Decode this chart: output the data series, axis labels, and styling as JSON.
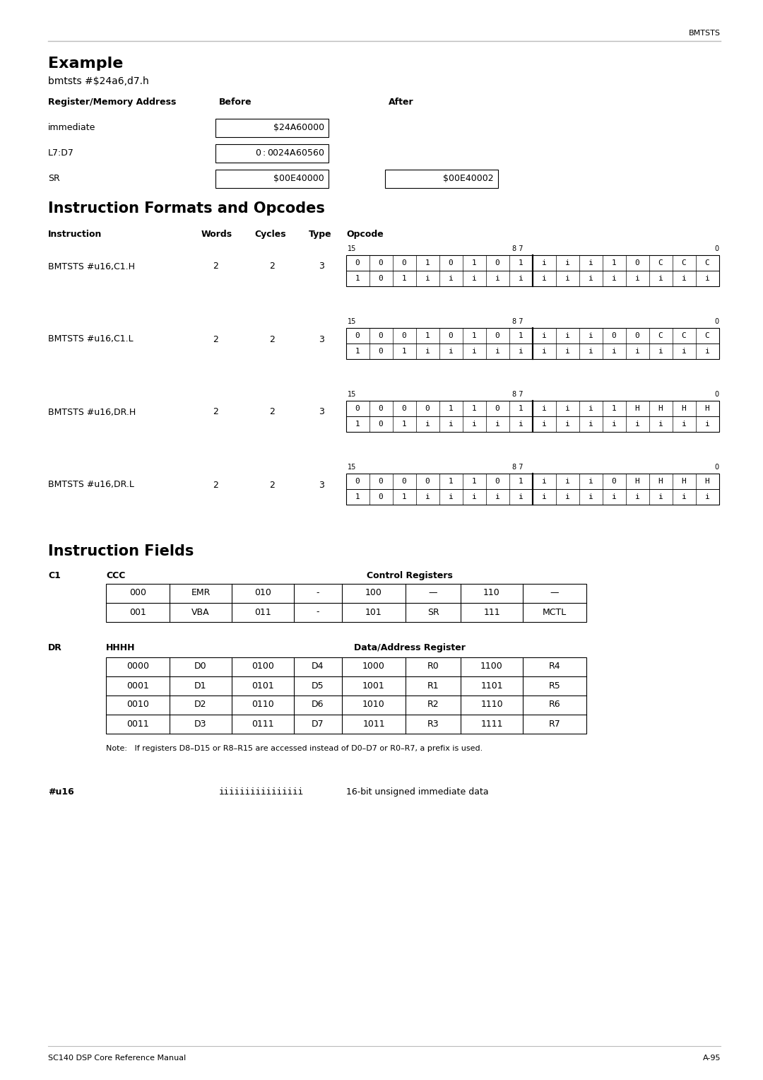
{
  "page_width": 10.8,
  "page_height": 15.28,
  "bg_color": "#ffffff",
  "header_text": "BMTSTS",
  "example_title": "Example",
  "example_subtitle": "bmtsts #$24a6,d7.h",
  "reg_table_headers": [
    "Register/Memory Address",
    "Before",
    "After"
  ],
  "reg_table_rows": [
    [
      "immediate",
      "$24A60000",
      ""
    ],
    [
      "L7:D7",
      "$0:$0024A60560",
      ""
    ],
    [
      "SR",
      "$00E40000",
      "$00E40002"
    ]
  ],
  "section2_title": "Instruction Formats and Opcodes",
  "instructions": [
    {
      "name": "BMTSTS #u16,C1.H",
      "words": "2",
      "cycles": "2",
      "type": "3",
      "row1": [
        "0",
        "0",
        "0",
        "1",
        "0",
        "1",
        "0",
        "1",
        "i",
        "i",
        "i",
        "1",
        "0",
        "C",
        "C",
        "C"
      ],
      "row2": [
        "1",
        "0",
        "1",
        "i",
        "i",
        "i",
        "i",
        "i",
        "i",
        "i",
        "i",
        "i",
        "i",
        "i",
        "i",
        "i"
      ]
    },
    {
      "name": "BMTSTS #u16,C1.L",
      "words": "2",
      "cycles": "2",
      "type": "3",
      "row1": [
        "0",
        "0",
        "0",
        "1",
        "0",
        "1",
        "0",
        "1",
        "i",
        "i",
        "i",
        "0",
        "0",
        "C",
        "C",
        "C"
      ],
      "row2": [
        "1",
        "0",
        "1",
        "i",
        "i",
        "i",
        "i",
        "i",
        "i",
        "i",
        "i",
        "i",
        "i",
        "i",
        "i",
        "i"
      ]
    },
    {
      "name": "BMTSTS #u16,DR.H",
      "words": "2",
      "cycles": "2",
      "type": "3",
      "row1": [
        "0",
        "0",
        "0",
        "0",
        "1",
        "1",
        "0",
        "1",
        "i",
        "i",
        "i",
        "1",
        "H",
        "H",
        "H",
        "H"
      ],
      "row2": [
        "1",
        "0",
        "1",
        "i",
        "i",
        "i",
        "i",
        "i",
        "i",
        "i",
        "i",
        "i",
        "i",
        "i",
        "i",
        "i"
      ]
    },
    {
      "name": "BMTSTS #u16,DR.L",
      "words": "2",
      "cycles": "2",
      "type": "3",
      "row1": [
        "0",
        "0",
        "0",
        "0",
        "1",
        "1",
        "0",
        "1",
        "i",
        "i",
        "i",
        "0",
        "H",
        "H",
        "H",
        "H"
      ],
      "row2": [
        "1",
        "0",
        "1",
        "i",
        "i",
        "i",
        "i",
        "i",
        "i",
        "i",
        "i",
        "i",
        "i",
        "i",
        "i",
        "i"
      ]
    }
  ],
  "section3_title": "Instruction Fields",
  "c1_label": "C1",
  "ccc_label": "CCC",
  "control_reg_label": "Control Registers",
  "ccc_table": [
    [
      "000",
      "EMR",
      "010",
      "-",
      "100",
      "—",
      "110",
      "—"
    ],
    [
      "001",
      "VBA",
      "011",
      "-",
      "101",
      "SR",
      "111",
      "MCTL"
    ]
  ],
  "dr_label": "DR",
  "hhhh_label": "HHHH",
  "data_addr_label": "Data/Address Register",
  "dr_table": [
    [
      "0000",
      "D0",
      "0100",
      "D4",
      "1000",
      "R0",
      "1100",
      "R4"
    ],
    [
      "0001",
      "D1",
      "0101",
      "D5",
      "1001",
      "R1",
      "1101",
      "R5"
    ],
    [
      "0010",
      "D2",
      "0110",
      "D6",
      "1010",
      "R2",
      "1110",
      "R6"
    ],
    [
      "0011",
      "D3",
      "0111",
      "D7",
      "1011",
      "R3",
      "1111",
      "R7"
    ]
  ],
  "dr_note": "Note:   If registers D8–D15 or R8–R15 are accessed instead of D0–D7 or R0–R7, a prefix is used.",
  "u16_label": "#u16",
  "u16_bits": "iiiiiiiiiiiiiiii",
  "u16_desc": "16-bit unsigned immediate data",
  "footer_left": "SC140 DSP Core Reference Manual",
  "footer_right": "A-95"
}
